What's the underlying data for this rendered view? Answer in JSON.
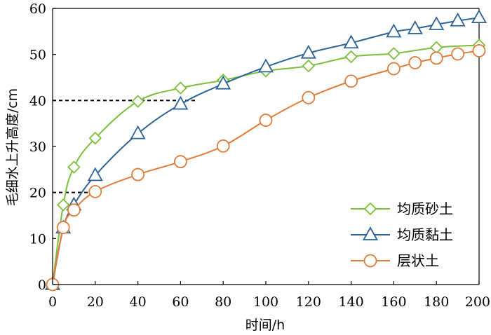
{
  "chart_data": {
    "type": "line",
    "xlabel": "时间/h",
    "ylabel": "毛细水上升高度/cm",
    "xlim": [
      0,
      200
    ],
    "ylim": [
      0,
      60
    ],
    "x_ticks": [
      "0",
      "20",
      "40",
      "60",
      "80",
      "100",
      "120",
      "140",
      "160",
      "180",
      "200"
    ],
    "y_ticks": [
      "0",
      "10",
      "20",
      "30",
      "40",
      "50",
      "60"
    ],
    "legend_position": "bottom-right",
    "grid": false,
    "reference_lines": [
      {
        "y": 40,
        "x_from": 0,
        "x_to": 68
      },
      {
        "y": 20,
        "x_from": 0,
        "x_to": 20
      }
    ],
    "series": [
      {
        "name": "均质砂土",
        "color": "#7cbf3c",
        "marker": "diamond",
        "points": [
          [
            0,
            0
          ],
          [
            5,
            17.3
          ],
          [
            10,
            25.5
          ],
          [
            20,
            31.8
          ],
          [
            40,
            39.8
          ],
          [
            60,
            42.7
          ],
          [
            80,
            44.4
          ],
          [
            100,
            46.4
          ],
          [
            120,
            47.5
          ],
          [
            140,
            49.5
          ],
          [
            160,
            50.2
          ],
          [
            180,
            51.5
          ],
          [
            200,
            52
          ]
        ]
      },
      {
        "name": "均质黏土",
        "color": "#2d6395",
        "marker": "triangle",
        "points": [
          [
            0,
            0
          ],
          [
            5,
            12.3
          ],
          [
            10,
            17.3
          ],
          [
            20,
            23.7
          ],
          [
            40,
            32.8
          ],
          [
            60,
            39.2
          ],
          [
            80,
            43.6
          ],
          [
            100,
            47.3
          ],
          [
            120,
            50.3
          ],
          [
            140,
            52.5
          ],
          [
            160,
            54.9
          ],
          [
            170,
            55.6
          ],
          [
            180,
            56.5
          ],
          [
            190,
            57.3
          ],
          [
            200,
            58
          ]
        ]
      },
      {
        "name": "层状土",
        "color": "#e07b39",
        "marker": "circle",
        "points": [
          [
            0,
            0
          ],
          [
            5,
            12.4
          ],
          [
            10,
            16.2
          ],
          [
            20,
            20.2
          ],
          [
            40,
            23.9
          ],
          [
            60,
            26.7
          ],
          [
            80,
            30.1
          ],
          [
            100,
            35.7
          ],
          [
            120,
            40.6
          ],
          [
            140,
            44.2
          ],
          [
            160,
            46.9
          ],
          [
            170,
            48.2
          ],
          [
            180,
            49.2
          ],
          [
            190,
            50.1
          ],
          [
            200,
            50.8
          ]
        ]
      }
    ]
  }
}
